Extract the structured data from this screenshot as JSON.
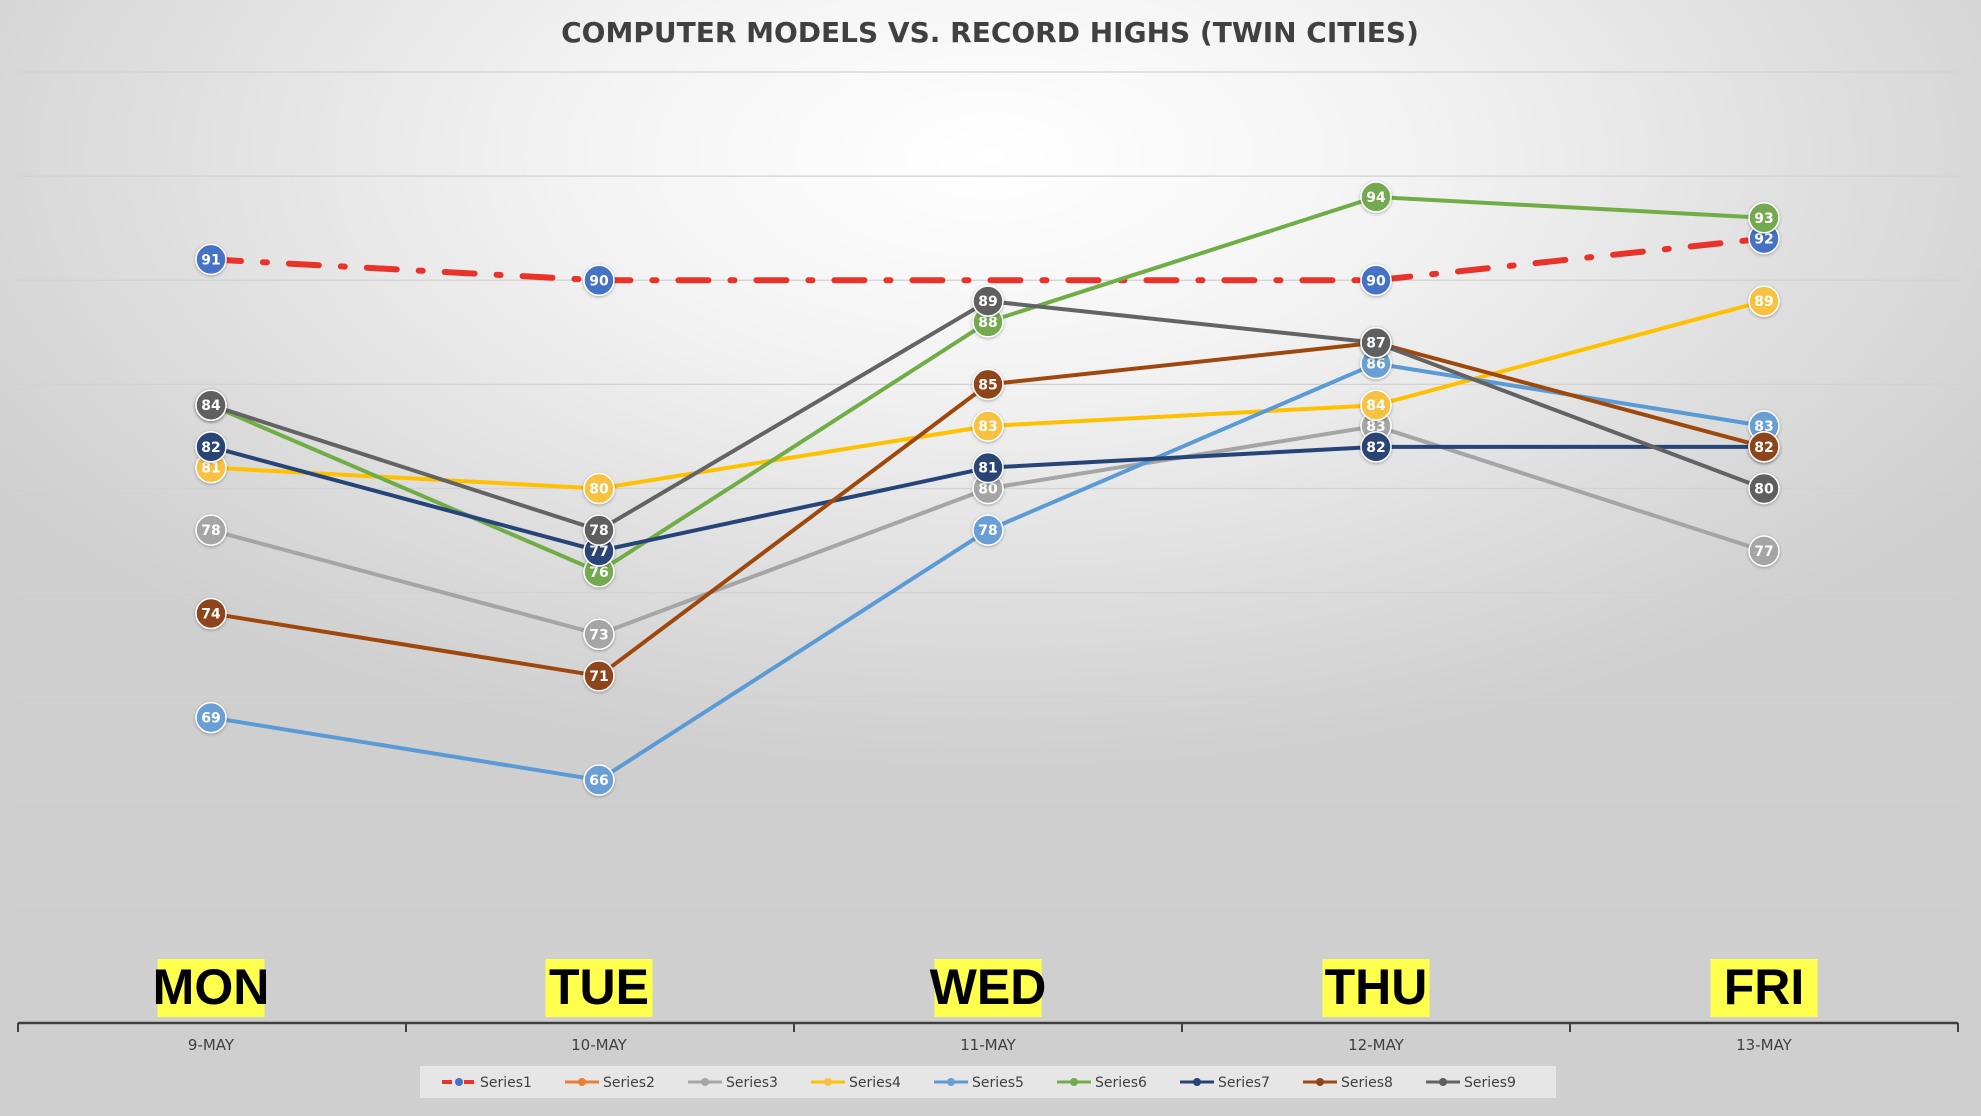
{
  "chart_data": {
    "type": "line",
    "title": "COMPUTER MODELS VS. RECORD HIGHS (TWIN CITIES)",
    "xlabel": "",
    "ylabel": "",
    "categories": [
      "9-MAY",
      "10-MAY",
      "11-MAY",
      "12-MAY",
      "13-MAY"
    ],
    "day_labels": [
      "MON",
      "TUE",
      "WED",
      "THU",
      "FRI"
    ],
    "day_label_highlight": "#ffff4d",
    "ylim": [
      60,
      100
    ],
    "grid": true,
    "legend_position": "bottom",
    "series": [
      {
        "name": "Series1",
        "values": [
          91,
          90,
          null,
          90,
          92
        ],
        "color": "#e8332a",
        "marker_color": "#4472c4",
        "style": "dash-dot",
        "label_values": true
      },
      {
        "name": "Series2",
        "values": [
          null,
          null,
          null,
          null,
          null
        ],
        "color": "#ed7d31",
        "marker_color": "#ed7d31",
        "style": "solid"
      },
      {
        "name": "Series3",
        "values": [
          78,
          73,
          80,
          83,
          77
        ],
        "color": "#a5a5a5",
        "marker_color": "#a5a5a5",
        "style": "solid"
      },
      {
        "name": "Series4",
        "values": [
          81,
          80,
          83,
          84,
          89
        ],
        "color": "#ffc000",
        "marker_color": "#f7c143",
        "style": "solid"
      },
      {
        "name": "Series5",
        "values": [
          69,
          66,
          78,
          86,
          83
        ],
        "color": "#5b9bd5",
        "marker_color": "#6a9fd6",
        "style": "solid"
      },
      {
        "name": "Series6",
        "values": [
          84,
          76,
          88,
          94,
          93
        ],
        "color": "#70ad47",
        "marker_color": "#74a94f",
        "style": "solid"
      },
      {
        "name": "Series7",
        "values": [
          82,
          77,
          81,
          82,
          82
        ],
        "color": "#264478",
        "marker_color": "#2a4474",
        "style": "solid"
      },
      {
        "name": "Series8",
        "values": [
          74,
          71,
          85,
          87,
          82
        ],
        "color": "#9e480e",
        "marker_color": "#8f451b",
        "style": "solid"
      },
      {
        "name": "Series9",
        "values": [
          84,
          78,
          89,
          87,
          80
        ],
        "color": "#636363",
        "marker_color": "#5e5e5e",
        "style": "solid"
      }
    ]
  }
}
